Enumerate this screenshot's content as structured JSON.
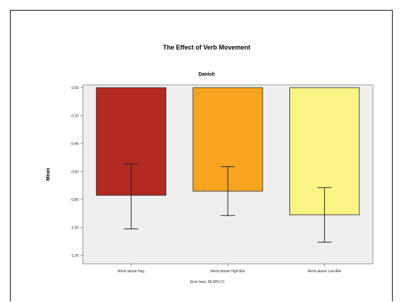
{
  "chart_data": {
    "type": "bar",
    "title": "The Effect of Verb Movement",
    "subtitle": "Danish",
    "ylabel": "Mean",
    "xlabel": "",
    "categories": [
      "Mvmt above Neg",
      "Mvmt above High Adv",
      "Mvmt above Low Adv"
    ],
    "values": [
      -0.77,
      -0.74,
      -0.91
    ],
    "error_bars": [
      {
        "low": -1.01,
        "high": -0.545
      },
      {
        "low": -0.915,
        "high": -0.565
      },
      {
        "low": -1.105,
        "high": -0.715
      }
    ],
    "colors": [
      "#b22a22",
      "#f7a520",
      "#fbf586"
    ],
    "ylim": [
      -1.26,
      0.02
    ],
    "yticks": [
      "0.00",
      "-0.20",
      "-0.40",
      "-0.60",
      "-0.80",
      "-1.00",
      "-1.20"
    ],
    "ytick_values": [
      0,
      -0.2,
      -0.4,
      -0.6,
      -0.8,
      -1.0,
      -1.2
    ],
    "footnote": "Error bars: 95.00% CI",
    "plot_background": "#efefef",
    "grid": false
  }
}
